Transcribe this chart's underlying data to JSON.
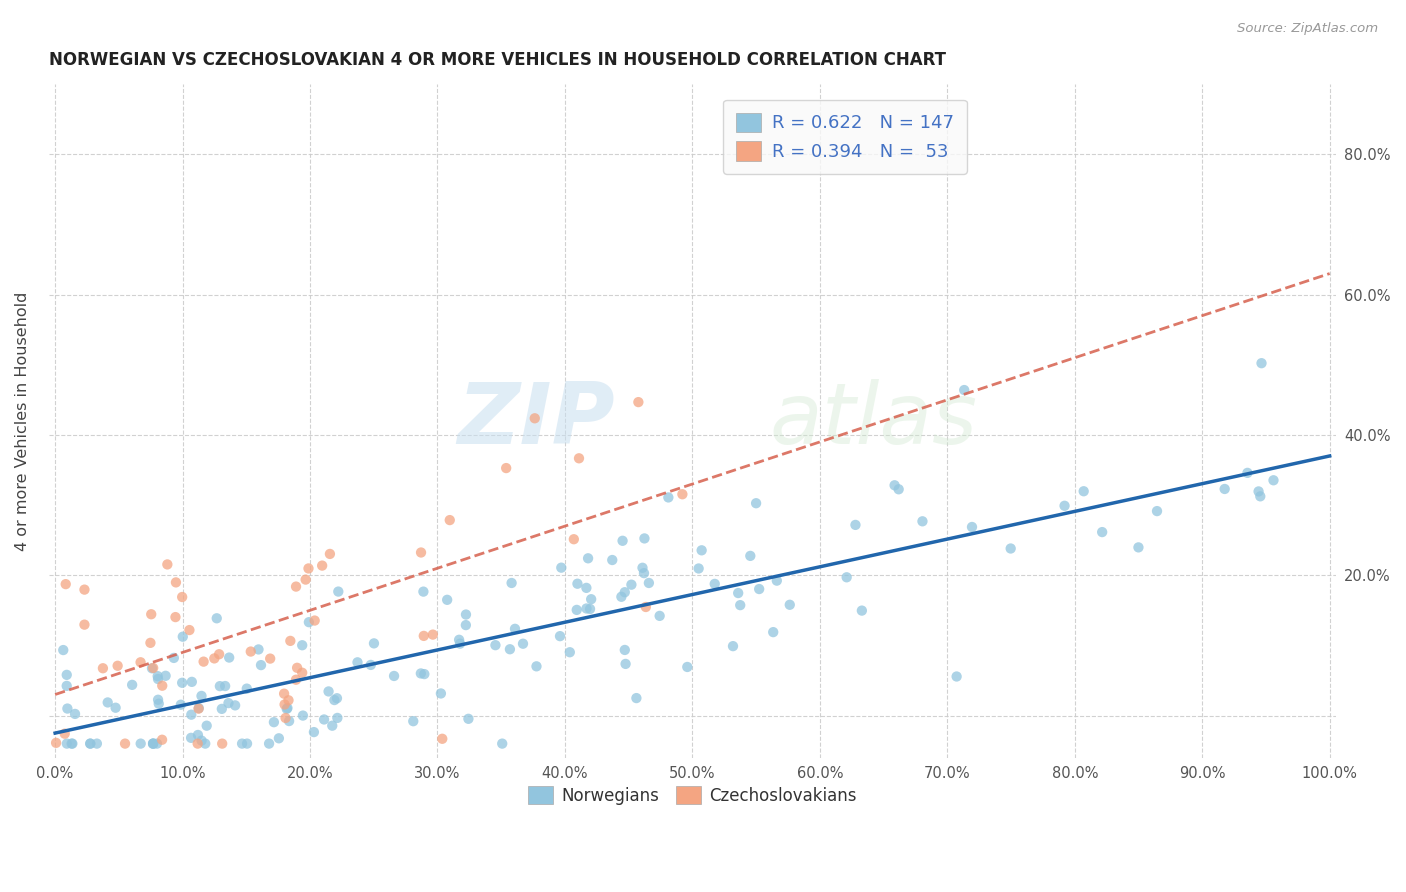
{
  "title": "NORWEGIAN VS CZECHOSLOVAKIAN 4 OR MORE VEHICLES IN HOUSEHOLD CORRELATION CHART",
  "source": "Source: ZipAtlas.com",
  "ylabel": "4 or more Vehicles in Household",
  "legend_blue_R": "R = 0.622",
  "legend_blue_N": "N = 147",
  "legend_pink_R": "R = 0.394",
  "legend_pink_N": "N =  53",
  "legend_label_blue": "Norwegians",
  "legend_label_pink": "Czechoslovakians",
  "blue_color": "#92c5de",
  "pink_color": "#f4a582",
  "blue_line_color": "#2166ac",
  "pink_line_color": "#d6604d",
  "blue_scatter_alpha": 0.75,
  "pink_scatter_alpha": 0.75,
  "marker_size": 55,
  "watermark_zip": "ZIP",
  "watermark_atlas": "atlas",
  "xlim": [
    -0.005,
    1.005
  ],
  "ylim": [
    -0.06,
    0.9
  ],
  "xtick_positions": [
    0.0,
    0.1,
    0.2,
    0.3,
    0.4,
    0.5,
    0.6,
    0.7,
    0.8,
    0.9,
    1.0
  ],
  "xtick_labels": [
    "0.0%",
    "10.0%",
    "20.0%",
    "30.0%",
    "40.0%",
    "50.0%",
    "60.0%",
    "70.0%",
    "80.0%",
    "90.0%",
    "100.0%"
  ],
  "ytick_positions": [
    0.0,
    0.2,
    0.4,
    0.6,
    0.8
  ],
  "ytick_labels": [
    "",
    "20.0%",
    "40.0%",
    "60.0%",
    "80.0%"
  ],
  "blue_slope": 0.395,
  "blue_intercept": -0.025,
  "pink_slope": 0.6,
  "pink_intercept": 0.03
}
